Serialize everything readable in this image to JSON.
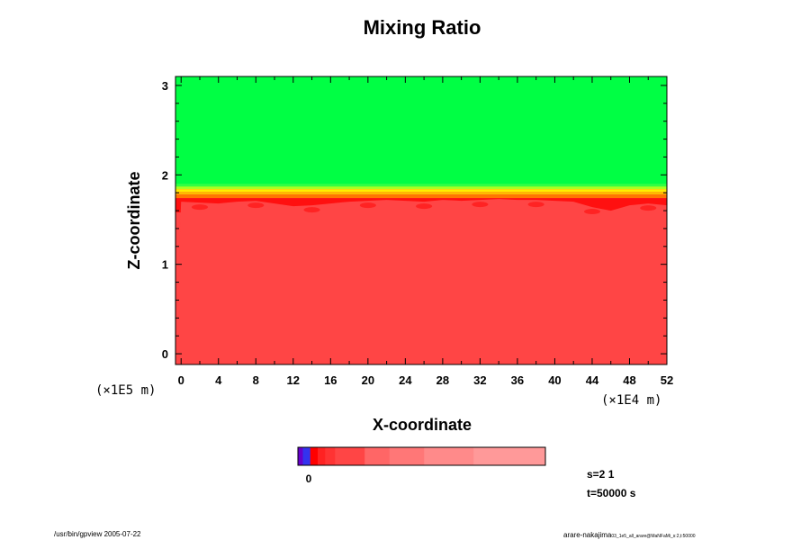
{
  "chart_data": {
    "type": "heatmap",
    "title": "Mixing Ratio",
    "xlabel": "X-coordinate",
    "ylabel": "Z-coordinate",
    "x_unit": "(×1E4 m)",
    "z_unit": "(×1E5 m)",
    "xlim": [
      -0.6,
      52
    ],
    "ylim": [
      -0.12,
      3.1
    ],
    "x_ticks": [
      0,
      4,
      8,
      12,
      16,
      20,
      24,
      28,
      32,
      36,
      40,
      44,
      48,
      52
    ],
    "y_ticks": [
      0,
      1,
      2,
      3
    ],
    "x_minor_step": 2,
    "y_minor_step": 0.2,
    "fields": {
      "upper_color": "#00ff44",
      "lower_color": "#ff4545",
      "interface_height": 1.85,
      "transition_bands": [
        {
          "z_top": 1.9,
          "color": "#33ff44"
        },
        {
          "z_top": 1.87,
          "color": "#aaff22"
        },
        {
          "z_top": 1.84,
          "color": "#ffee00"
        },
        {
          "z_top": 1.81,
          "color": "#ffbb00"
        },
        {
          "z_top": 1.78,
          "color": "#ff7700"
        },
        {
          "z_top": 1.74,
          "color": "#ff1010"
        }
      ],
      "boundary_profile_x": [
        0,
        2,
        4,
        6,
        8,
        10,
        12,
        14,
        16,
        18,
        20,
        22,
        24,
        26,
        28,
        30,
        32,
        34,
        36,
        38,
        40,
        42,
        44,
        46,
        48,
        50,
        52
      ],
      "boundary_profile_z": [
        1.7,
        1.69,
        1.68,
        1.7,
        1.71,
        1.68,
        1.65,
        1.66,
        1.68,
        1.7,
        1.71,
        1.72,
        1.71,
        1.7,
        1.72,
        1.71,
        1.72,
        1.73,
        1.72,
        1.72,
        1.71,
        1.7,
        1.64,
        1.6,
        1.66,
        1.68,
        1.66
      ]
    },
    "colorbar": {
      "colors": [
        "#6600cc",
        "#3333ee",
        "#ff0000",
        "#ff2222",
        "#ff3333",
        "#ff4545",
        "#ff6666",
        "#ff7777",
        "#ff8a8a",
        "#ff9999"
      ],
      "fractions": [
        0.02,
        0.03,
        0.03,
        0.03,
        0.04,
        0.12,
        0.1,
        0.14,
        0.2,
        0.29
      ],
      "label": "0"
    },
    "annotation_s": "s=2 1",
    "annotation_t": "t=50000 s"
  },
  "footer": {
    "left": "/usr/bin/gpview 2005-07-22",
    "right_main": "arare-nakajima",
    "right_sub": "03_1e5_all_arare@MaNFaMi_s:2,t:50000"
  }
}
